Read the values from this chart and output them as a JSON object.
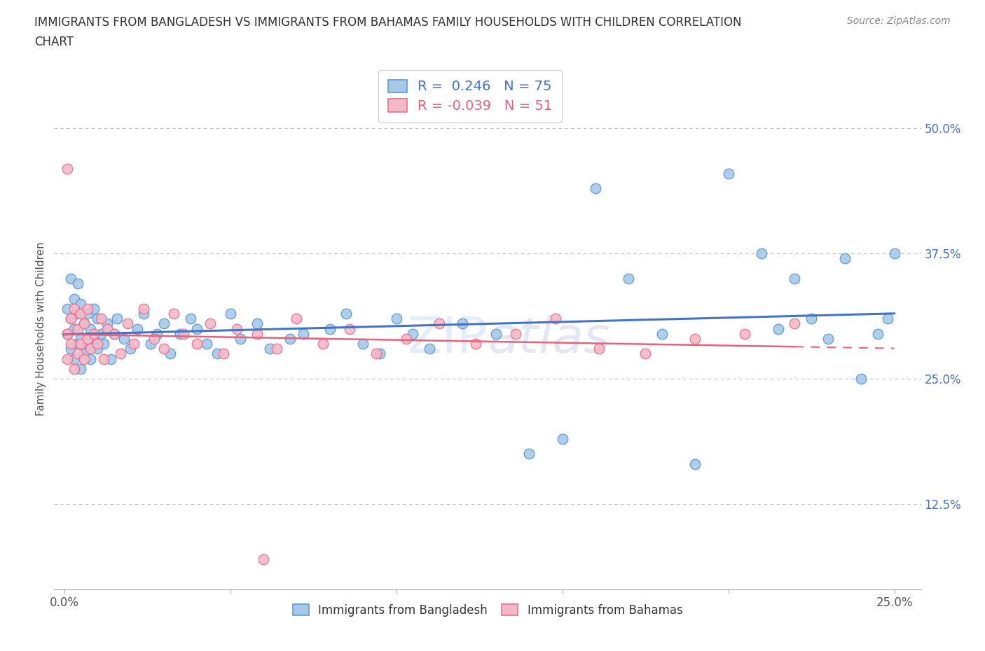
{
  "title_line1": "IMMIGRANTS FROM BANGLADESH VS IMMIGRANTS FROM BAHAMAS FAMILY HOUSEHOLDS WITH CHILDREN CORRELATION",
  "title_line2": "CHART",
  "source": "Source: ZipAtlas.com",
  "ylabel": "Family Households with Children",
  "xlim_min": -0.003,
  "xlim_max": 0.258,
  "ylim_min": 0.04,
  "ylim_max": 0.56,
  "xticks": [
    0.0,
    0.05,
    0.1,
    0.15,
    0.2,
    0.25
  ],
  "xtick_labels": [
    "0.0%",
    "",
    "",
    "",
    "",
    "25.0%"
  ],
  "yticks_right": [
    0.125,
    0.25,
    0.375,
    0.5
  ],
  "ytick_labels_right": [
    "12.5%",
    "25.0%",
    "37.5%",
    "50.0%"
  ],
  "R_bangladesh": 0.246,
  "N_bangladesh": 75,
  "R_bahamas": -0.039,
  "N_bahamas": 51,
  "color_bangladesh": "#A8C8E8",
  "color_bahamas": "#F4B8C8",
  "edge_color_bangladesh": "#5B9BD5",
  "edge_color_bahamas": "#E87090",
  "line_color_bangladesh": "#4472C4",
  "line_color_bahamas": "#E8607A",
  "watermark": "ZIPatlas",
  "bangladesh_x": [
    0.001,
    0.001,
    0.002,
    0.002,
    0.002,
    0.003,
    0.003,
    0.003,
    0.004,
    0.004,
    0.004,
    0.005,
    0.005,
    0.005,
    0.006,
    0.006,
    0.007,
    0.007,
    0.008,
    0.008,
    0.009,
    0.009,
    0.01,
    0.01,
    0.011,
    0.012,
    0.013,
    0.014,
    0.015,
    0.016,
    0.018,
    0.02,
    0.022,
    0.024,
    0.026,
    0.028,
    0.03,
    0.032,
    0.035,
    0.038,
    0.04,
    0.043,
    0.046,
    0.05,
    0.053,
    0.058,
    0.062,
    0.068,
    0.072,
    0.08,
    0.085,
    0.09,
    0.095,
    0.1,
    0.105,
    0.11,
    0.12,
    0.13,
    0.14,
    0.15,
    0.16,
    0.17,
    0.18,
    0.19,
    0.2,
    0.21,
    0.215,
    0.22,
    0.225,
    0.23,
    0.235,
    0.24,
    0.245,
    0.248,
    0.25
  ],
  "bangladesh_y": [
    0.295,
    0.32,
    0.28,
    0.31,
    0.35,
    0.27,
    0.3,
    0.33,
    0.285,
    0.315,
    0.345,
    0.26,
    0.29,
    0.325,
    0.275,
    0.305,
    0.285,
    0.315,
    0.27,
    0.3,
    0.29,
    0.32,
    0.28,
    0.31,
    0.295,
    0.285,
    0.305,
    0.27,
    0.295,
    0.31,
    0.29,
    0.28,
    0.3,
    0.315,
    0.285,
    0.295,
    0.305,
    0.275,
    0.295,
    0.31,
    0.3,
    0.285,
    0.275,
    0.315,
    0.29,
    0.305,
    0.28,
    0.29,
    0.295,
    0.3,
    0.315,
    0.285,
    0.275,
    0.31,
    0.295,
    0.28,
    0.305,
    0.295,
    0.175,
    0.19,
    0.44,
    0.35,
    0.295,
    0.165,
    0.455,
    0.375,
    0.3,
    0.35,
    0.31,
    0.29,
    0.37,
    0.25,
    0.295,
    0.31,
    0.375
  ],
  "bahamas_x": [
    0.001,
    0.001,
    0.002,
    0.002,
    0.003,
    0.003,
    0.004,
    0.004,
    0.005,
    0.005,
    0.006,
    0.006,
    0.007,
    0.007,
    0.008,
    0.009,
    0.01,
    0.011,
    0.012,
    0.013,
    0.015,
    0.017,
    0.019,
    0.021,
    0.024,
    0.027,
    0.03,
    0.033,
    0.036,
    0.04,
    0.044,
    0.048,
    0.052,
    0.058,
    0.064,
    0.07,
    0.078,
    0.086,
    0.094,
    0.103,
    0.113,
    0.124,
    0.136,
    0.148,
    0.161,
    0.175,
    0.19,
    0.205,
    0.22,
    0.001,
    0.06
  ],
  "bahamas_y": [
    0.295,
    0.27,
    0.31,
    0.285,
    0.32,
    0.26,
    0.3,
    0.275,
    0.315,
    0.285,
    0.27,
    0.305,
    0.29,
    0.32,
    0.28,
    0.295,
    0.285,
    0.31,
    0.27,
    0.3,
    0.295,
    0.275,
    0.305,
    0.285,
    0.32,
    0.29,
    0.28,
    0.315,
    0.295,
    0.285,
    0.305,
    0.275,
    0.3,
    0.295,
    0.28,
    0.31,
    0.285,
    0.3,
    0.275,
    0.29,
    0.305,
    0.285,
    0.295,
    0.31,
    0.28,
    0.275,
    0.29,
    0.295,
    0.305,
    0.46,
    0.07
  ]
}
